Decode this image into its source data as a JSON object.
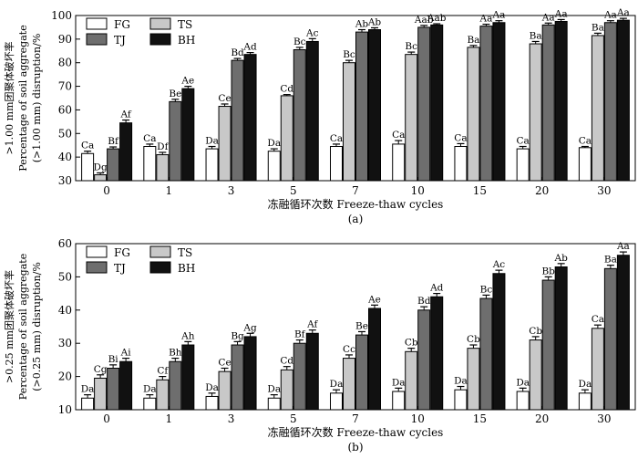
{
  "figure": {
    "panels": [
      {
        "id": "a",
        "sublabel": "(a)",
        "ylabel_lines": [
          ">1.00 mm团聚体破坏率",
          "Percentage of soil aggregate",
          "(>1.00 mm) disruption/%"
        ],
        "xlabel": "冻融循环次数 Freeze-thaw cycles"
      },
      {
        "id": "b",
        "sublabel": "(b)",
        "ylabel_lines": [
          ">0.25 mm团聚体破坏率",
          "Percentage of soil aggregate",
          "(>0.25 mm) disruption/%"
        ],
        "xlabel": "冻融循环次数 Freeze-thaw cycles"
      }
    ]
  },
  "chart_data": [
    {
      "type": "bar",
      "panel": "a",
      "categories": [
        "0",
        "1",
        "3",
        "5",
        "7",
        "10",
        "15",
        "20",
        "30"
      ],
      "xlabel": "冻融循环次数 Freeze-thaw cycles",
      "ylabel": ">1.00 mm团聚体破坏率 Percentage of soil aggregate (>1.00 mm) disruption/%",
      "ylim": [
        30,
        100
      ],
      "yticks": [
        30,
        40,
        50,
        60,
        70,
        80,
        90,
        100
      ],
      "legend_position": "top-left",
      "grid": false,
      "series": [
        {
          "name": "FG",
          "color": "#ffffff",
          "values": [
            41.5,
            44.5,
            43.5,
            42.5,
            44.5,
            45.5,
            44.5,
            43.5,
            44.0
          ],
          "errors": [
            1.0,
            1.0,
            1.0,
            1.0,
            1.0,
            1.5,
            1.2,
            1.0,
            0.5
          ],
          "labels": [
            "Ca",
            "Ca",
            "Da",
            "Da",
            "Ca",
            "Ca",
            "Ca",
            "Ca",
            "Ca"
          ]
        },
        {
          "name": "TS",
          "color": "#c8c8c8",
          "values": [
            32.5,
            41.0,
            61.5,
            66.0,
            80.0,
            83.5,
            86.5,
            88.0,
            91.5
          ],
          "errors": [
            0.8,
            1.0,
            1.0,
            0.5,
            1.0,
            1.0,
            0.8,
            1.0,
            1.0
          ],
          "labels": [
            "Dg",
            "Df",
            "Ce",
            "Cd",
            "Bc",
            "Bc",
            "Ba",
            "Ba",
            "Ba"
          ]
        },
        {
          "name": "TJ",
          "color": "#6e6e6e",
          "values": [
            43.5,
            63.5,
            81.0,
            85.5,
            93.0,
            95.0,
            95.5,
            96.0,
            97.0
          ],
          "errors": [
            0.8,
            1.0,
            0.8,
            1.0,
            1.0,
            0.8,
            0.8,
            0.8,
            0.8
          ],
          "labels": [
            "Bf",
            "Be",
            "Bd",
            "Bc",
            "Ab",
            "Aab",
            "Aa",
            "Aa",
            "Aa"
          ]
        },
        {
          "name": "BH",
          "color": "#111111",
          "values": [
            54.5,
            69.0,
            83.5,
            89.0,
            94.0,
            96.0,
            97.0,
            97.5,
            98.0
          ],
          "errors": [
            1.2,
            1.0,
            0.8,
            1.2,
            0.8,
            0.5,
            0.8,
            0.8,
            0.8
          ],
          "labels": [
            "Af",
            "Ae",
            "Ad",
            "Ac",
            "Ab",
            "Aab",
            "Aa",
            "Aa",
            "Aa"
          ]
        }
      ]
    },
    {
      "type": "bar",
      "panel": "b",
      "categories": [
        "0",
        "1",
        "3",
        "5",
        "7",
        "10",
        "15",
        "20",
        "30"
      ],
      "xlabel": "冻融循环次数 Freeze-thaw cycles",
      "ylabel": ">0.25 mm团聚体破坏率 Percentage of soil aggregate (>0.25 mm) disruption/%",
      "ylim": [
        10,
        60
      ],
      "yticks": [
        10,
        20,
        30,
        40,
        50,
        60
      ],
      "legend_position": "top-left",
      "grid": false,
      "series": [
        {
          "name": "FG",
          "color": "#ffffff",
          "values": [
            13.5,
            13.5,
            14.0,
            13.5,
            15.0,
            15.5,
            16.0,
            15.5,
            15.0
          ],
          "errors": [
            1.0,
            1.0,
            1.0,
            1.0,
            1.0,
            1.0,
            1.0,
            1.0,
            1.0
          ],
          "labels": [
            "Da",
            "Da",
            "Da",
            "Da",
            "Da",
            "Da",
            "Da",
            "Da",
            "Da"
          ]
        },
        {
          "name": "TS",
          "color": "#c8c8c8",
          "values": [
            19.5,
            19.0,
            21.5,
            22.0,
            25.5,
            27.5,
            28.5,
            31.0,
            34.5
          ],
          "errors": [
            1.0,
            1.0,
            1.0,
            1.0,
            1.0,
            1.0,
            1.0,
            1.0,
            1.0
          ],
          "labels": [
            "Cg",
            "Cf",
            "Ce",
            "Cd",
            "Cc",
            "Cb",
            "Cb",
            "Cb",
            "Ca"
          ]
        },
        {
          "name": "TJ",
          "color": "#6e6e6e",
          "values": [
            22.5,
            24.5,
            29.5,
            30.0,
            32.5,
            40.0,
            43.5,
            49.0,
            52.5
          ],
          "errors": [
            1.0,
            1.0,
            1.0,
            1.0,
            1.0,
            1.0,
            1.0,
            1.0,
            1.0
          ],
          "labels": [
            "Bi",
            "Bh",
            "Bg",
            "Bf",
            "Be",
            "Bd",
            "Bc",
            "Bb",
            "Ba"
          ]
        },
        {
          "name": "BH",
          "color": "#111111",
          "values": [
            24.5,
            29.5,
            32.0,
            33.0,
            40.5,
            44.0,
            51.0,
            53.0,
            56.5
          ],
          "errors": [
            1.0,
            1.0,
            1.0,
            1.0,
            1.0,
            1.0,
            1.0,
            1.0,
            1.0
          ],
          "labels": [
            "Ai",
            "Ah",
            "Ag",
            "Af",
            "Ae",
            "Ad",
            "Ac",
            "Ab",
            "Aa"
          ]
        }
      ]
    }
  ]
}
